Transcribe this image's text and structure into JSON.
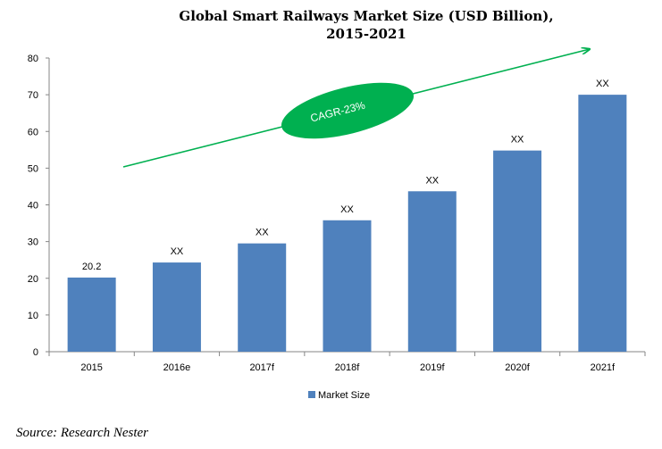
{
  "chart_data": {
    "type": "bar",
    "title_line1": "Global Smart Railways Market Size (USD Billion),",
    "title_line2": "2015-2021",
    "categories": [
      "2015",
      "2016e",
      "2017f",
      "2018f",
      "2019f",
      "2020f",
      "2021f"
    ],
    "series": [
      {
        "name": "Market Size",
        "values": [
          20.2,
          24.3,
          29.5,
          35.8,
          43.7,
          54.8,
          70
        ],
        "data_labels": [
          "20.2",
          "XX",
          "XX",
          "XX",
          "XX",
          "XX",
          "XX"
        ],
        "color": "#4f81bd"
      }
    ],
    "ylim": [
      0,
      80
    ],
    "yticks": [
      0,
      10,
      20,
      30,
      40,
      50,
      60,
      70,
      80
    ],
    "grid": false,
    "legend": "bottom",
    "annotation": {
      "text": "CAGR-23%",
      "color": "#00b050"
    }
  },
  "source": "Source: Research Nester"
}
